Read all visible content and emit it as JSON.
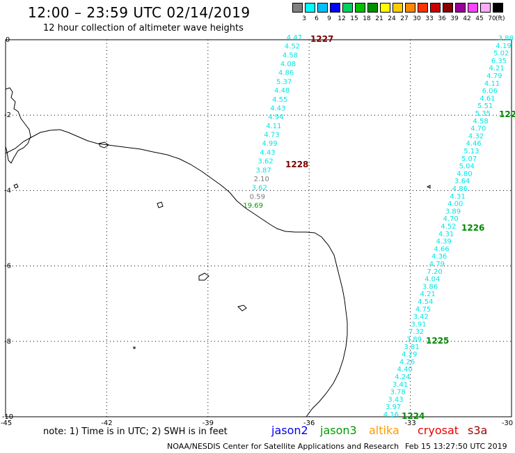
{
  "header": {
    "title": "12:00 – 23:59 UTC 02/14/2019",
    "subtitle": "12 hour collection of altimeter wave heights"
  },
  "legend": {
    "unit": "(ft)",
    "bins": [
      {
        "label": "3",
        "color": "#808080"
      },
      {
        "label": "6",
        "color": "#00ffff"
      },
      {
        "label": "9",
        "color": "#00c0ff"
      },
      {
        "label": "12",
        "color": "#0000ff"
      },
      {
        "label": "15",
        "color": "#00d060"
      },
      {
        "label": "18",
        "color": "#00c000"
      },
      {
        "label": "21",
        "color": "#009000"
      },
      {
        "label": "24",
        "color": "#ffff00"
      },
      {
        "label": "27",
        "color": "#ffcc00"
      },
      {
        "label": "30",
        "color": "#ff8800"
      },
      {
        "label": "33",
        "color": "#ff3300"
      },
      {
        "label": "36",
        "color": "#cc0000"
      },
      {
        "label": "39",
        "color": "#880000"
      },
      {
        "label": "42",
        "color": "#990099"
      },
      {
        "label": "45",
        "color": "#ff44ff"
      },
      {
        "label": "70",
        "color": "#ffaaff"
      },
      {
        "label": "",
        "color": "#000000"
      }
    ]
  },
  "axes": {
    "lon_labels": [
      "-45",
      "-42",
      "-39",
      "-36",
      "-33",
      "-30"
    ],
    "lat_labels": [
      "0",
      "-2",
      "-4",
      "-6",
      "-8",
      "-10"
    ]
  },
  "tracks": {
    "west": {
      "values": [
        "4.47",
        "4.52",
        "4.58",
        "4.08",
        "4.86",
        "5.37",
        "4.48",
        "4.55",
        "4.43",
        "4.94",
        "4.11",
        "4.73",
        "4.99",
        "4.43",
        "3.62",
        "3.87",
        "2.10",
        "3.62",
        "0.59",
        "19.69"
      ],
      "colors": [
        "cyan",
        "cyan",
        "cyan",
        "cyan",
        "cyan",
        "cyan",
        "cyan",
        "cyan",
        "cyan",
        "cyan",
        "cyan",
        "cyan",
        "cyan",
        "cyan",
        "cyan",
        "cyan",
        "grey",
        "cyan",
        "grey",
        "green"
      ]
    },
    "east": {
      "values": [
        "3.88",
        "4.19",
        "5.02",
        "6.35",
        "4.21",
        "4.79",
        "4.11",
        "6.06",
        "4.61",
        "5.51",
        "5.35",
        "4.58",
        "4.70",
        "4.32",
        "4.46",
        "5.13",
        "5.07",
        "5.04",
        "4.80",
        "3.64",
        "4.86",
        "4.31",
        "4.00",
        "3.89",
        "4.70",
        "4.52",
        "4.31",
        "4.39",
        "4.66",
        "4.36",
        "4.79",
        "7.20",
        "4.04",
        "3.86",
        "4.21",
        "4.54",
        "4.75",
        "3.42",
        "3.91",
        "7.32",
        "3.89",
        "3.81",
        "4.29",
        "4.26",
        "4.40",
        "4.24",
        "3.41",
        "3.78",
        "3.43",
        "3.97",
        "4.16"
      ]
    },
    "pass_labels": [
      {
        "text": "1227",
        "color": "#7a0000"
      },
      {
        "text": "1228",
        "color": "#7a0000"
      },
      {
        "text": "1226",
        "color": "#008800"
      },
      {
        "text": "1225",
        "color": "#008800"
      },
      {
        "text": "1224",
        "color": "#008800"
      },
      {
        "text": "122",
        "color": "#008800"
      }
    ]
  },
  "footer": {
    "note": "note: 1) Time is in UTC; 2) SWH is in feet",
    "satellites": [
      {
        "name": "jason2",
        "color": "#0000ee"
      },
      {
        "name": "jason3",
        "color": "#009900"
      },
      {
        "name": "altika",
        "color": "#ff9900"
      },
      {
        "name": "cryosat",
        "color": "#ee0000"
      },
      {
        "name": "s3a",
        "color": "#990000"
      }
    ],
    "credit": "NOAA/NESDIS Center for Satellite Applications and Research",
    "timestamp": "Feb 15 13:27:50 UTC 2019"
  }
}
